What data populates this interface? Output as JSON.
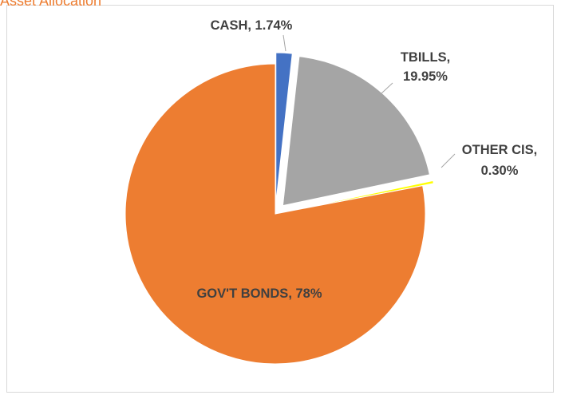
{
  "chart_data": {
    "type": "pie",
    "title": "Asset Allocation",
    "slices": [
      {
        "name": "CASH",
        "value": 1.74,
        "label": "CASH, 1.74%",
        "label_lines": [
          "CASH, 1.74%"
        ],
        "color": "#4472c4",
        "exploded": true
      },
      {
        "name": "TBILLS",
        "value": 19.95,
        "label": "TBILLS, 19.95%",
        "label_lines": [
          "TBILLS,",
          "19.95%"
        ],
        "color": "#a5a5a5",
        "exploded": true
      },
      {
        "name": "OTHER CIS",
        "value": 0.3,
        "label": "OTHER CIS, 0.30%",
        "label_lines": [
          "OTHER CIS,",
          "0.30%"
        ],
        "color": "#ffff00",
        "exploded": true
      },
      {
        "name": "GOV'T BONDS",
        "value": 78,
        "label": "GOV'T BONDS, 78%",
        "label_lines": [
          "GOV'T BONDS, 78%"
        ],
        "color": "#ed7d31",
        "exploded": false
      }
    ],
    "legend": "none",
    "title_color": "#ed7d31",
    "label_color": "#404040",
    "leader_line_color": "#a6a6a6"
  }
}
